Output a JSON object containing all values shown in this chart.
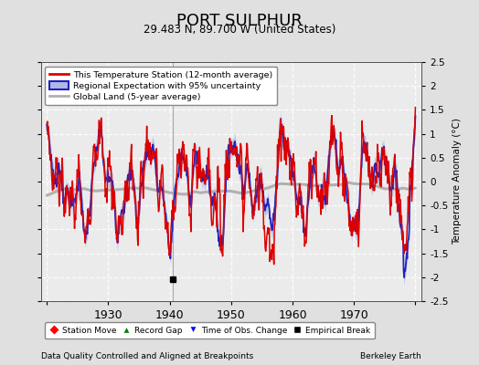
{
  "title": "PORT SULPHUR",
  "subtitle": "29.483 N, 89.700 W (United States)",
  "xlabel_bottom": "Data Quality Controlled and Aligned at Breakpoints",
  "xlabel_right": "Berkeley Earth",
  "ylabel_right": "Temperature Anomaly (°C)",
  "ylim": [
    -2.5,
    2.5
  ],
  "xlim": [
    1919,
    1981
  ],
  "yticks": [
    -2.5,
    -2.0,
    -1.5,
    -1.0,
    -0.5,
    0.0,
    0.5,
    1.0,
    1.5,
    2.0,
    2.5
  ],
  "xticks": [
    1920,
    1930,
    1940,
    1950,
    1960,
    1970,
    1980
  ],
  "xticklabels": [
    "",
    "1930",
    "1940",
    "1950",
    "1960",
    "1970",
    ""
  ],
  "bg_color": "#e0e0e0",
  "plot_bg_color": "#ebebeb",
  "grid_color": "#ffffff",
  "station_color": "#dd0000",
  "regional_color": "#2222bb",
  "regional_fill_color": "#b0b8e8",
  "global_color": "#b0b0b0",
  "empirical_break_year": 1940.5,
  "empirical_break_value": -2.05,
  "legend_items": [
    {
      "label": "This Temperature Station (12-month average)",
      "color": "#dd0000"
    },
    {
      "label": "Regional Expectation with 95% uncertainty",
      "color": "#2222bb"
    },
    {
      "label": "Global Land (5-year average)",
      "color": "#b0b0b0"
    }
  ]
}
